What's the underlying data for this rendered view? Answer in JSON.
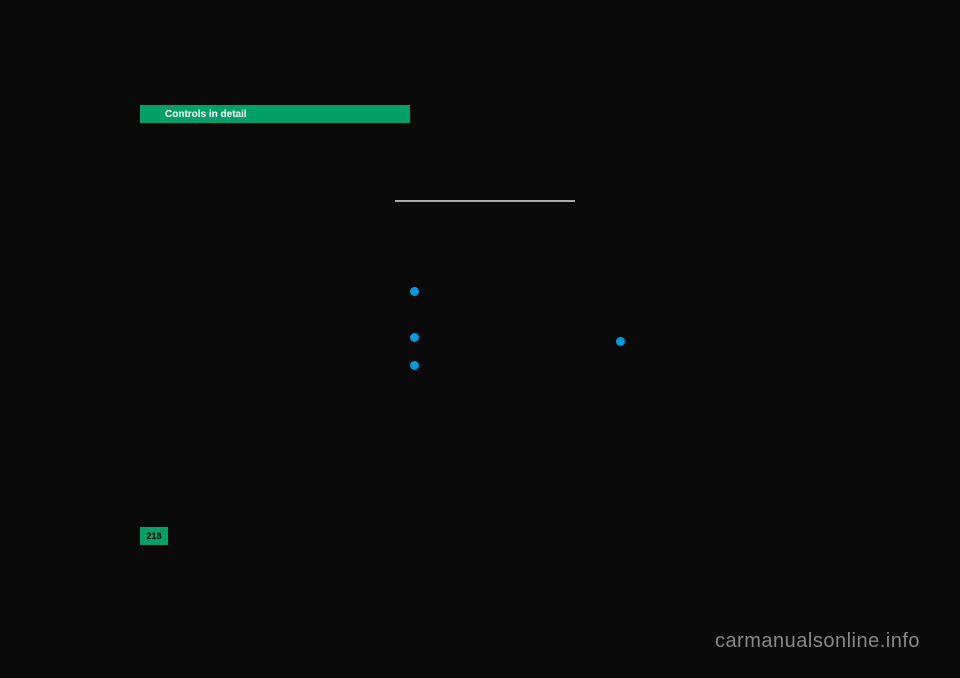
{
  "header": {
    "title": "Controls in detail",
    "background_color": "#00a068",
    "text_color": "#ffffff"
  },
  "divider": {
    "color": "#aaaaaa"
  },
  "bullets": {
    "color": "#0099dd",
    "count": 4
  },
  "page_number": {
    "value": "218",
    "background_color": "#00a068"
  },
  "watermark": {
    "text": "carmanualsonline.info",
    "color": "#888888"
  },
  "page_background": "#0a0a0a"
}
